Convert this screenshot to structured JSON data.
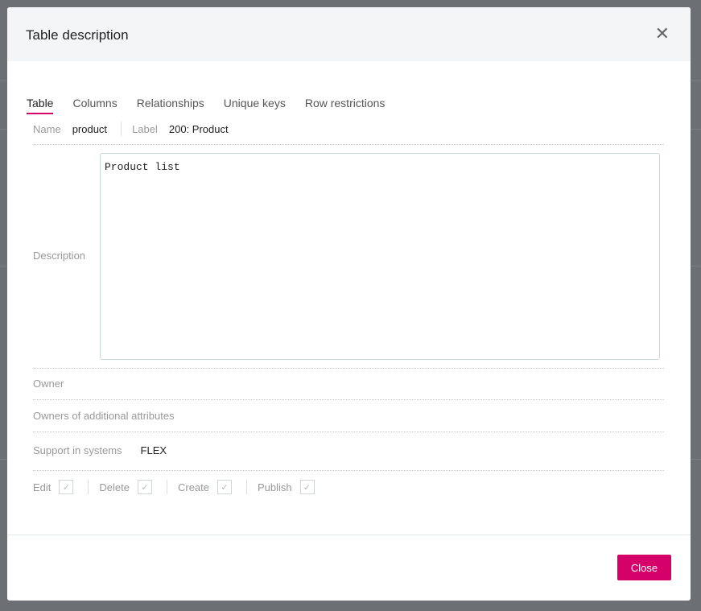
{
  "dialog": {
    "title": "Table description",
    "close_label": "Close"
  },
  "tabs": [
    {
      "label": "Table",
      "active": true
    },
    {
      "label": "Columns"
    },
    {
      "label": "Relationships"
    },
    {
      "label": "Unique keys"
    },
    {
      "label": "Row restrictions"
    }
  ],
  "table": {
    "name_label": "Name",
    "name": "product",
    "label_label": "Label",
    "label": "200: Product",
    "description_label": "Description",
    "description": "Product list",
    "owner_label": "Owner",
    "owners_additional_label": "Owners of additional attributes",
    "support_label": "Support in systems",
    "support": "FLEX",
    "permissions": [
      {
        "label": "Edit",
        "checked": true
      },
      {
        "label": "Delete",
        "checked": true
      },
      {
        "label": "Create",
        "checked": true
      },
      {
        "label": "Publish",
        "checked": true
      }
    ]
  },
  "colors": {
    "accent": "#d6006b"
  }
}
